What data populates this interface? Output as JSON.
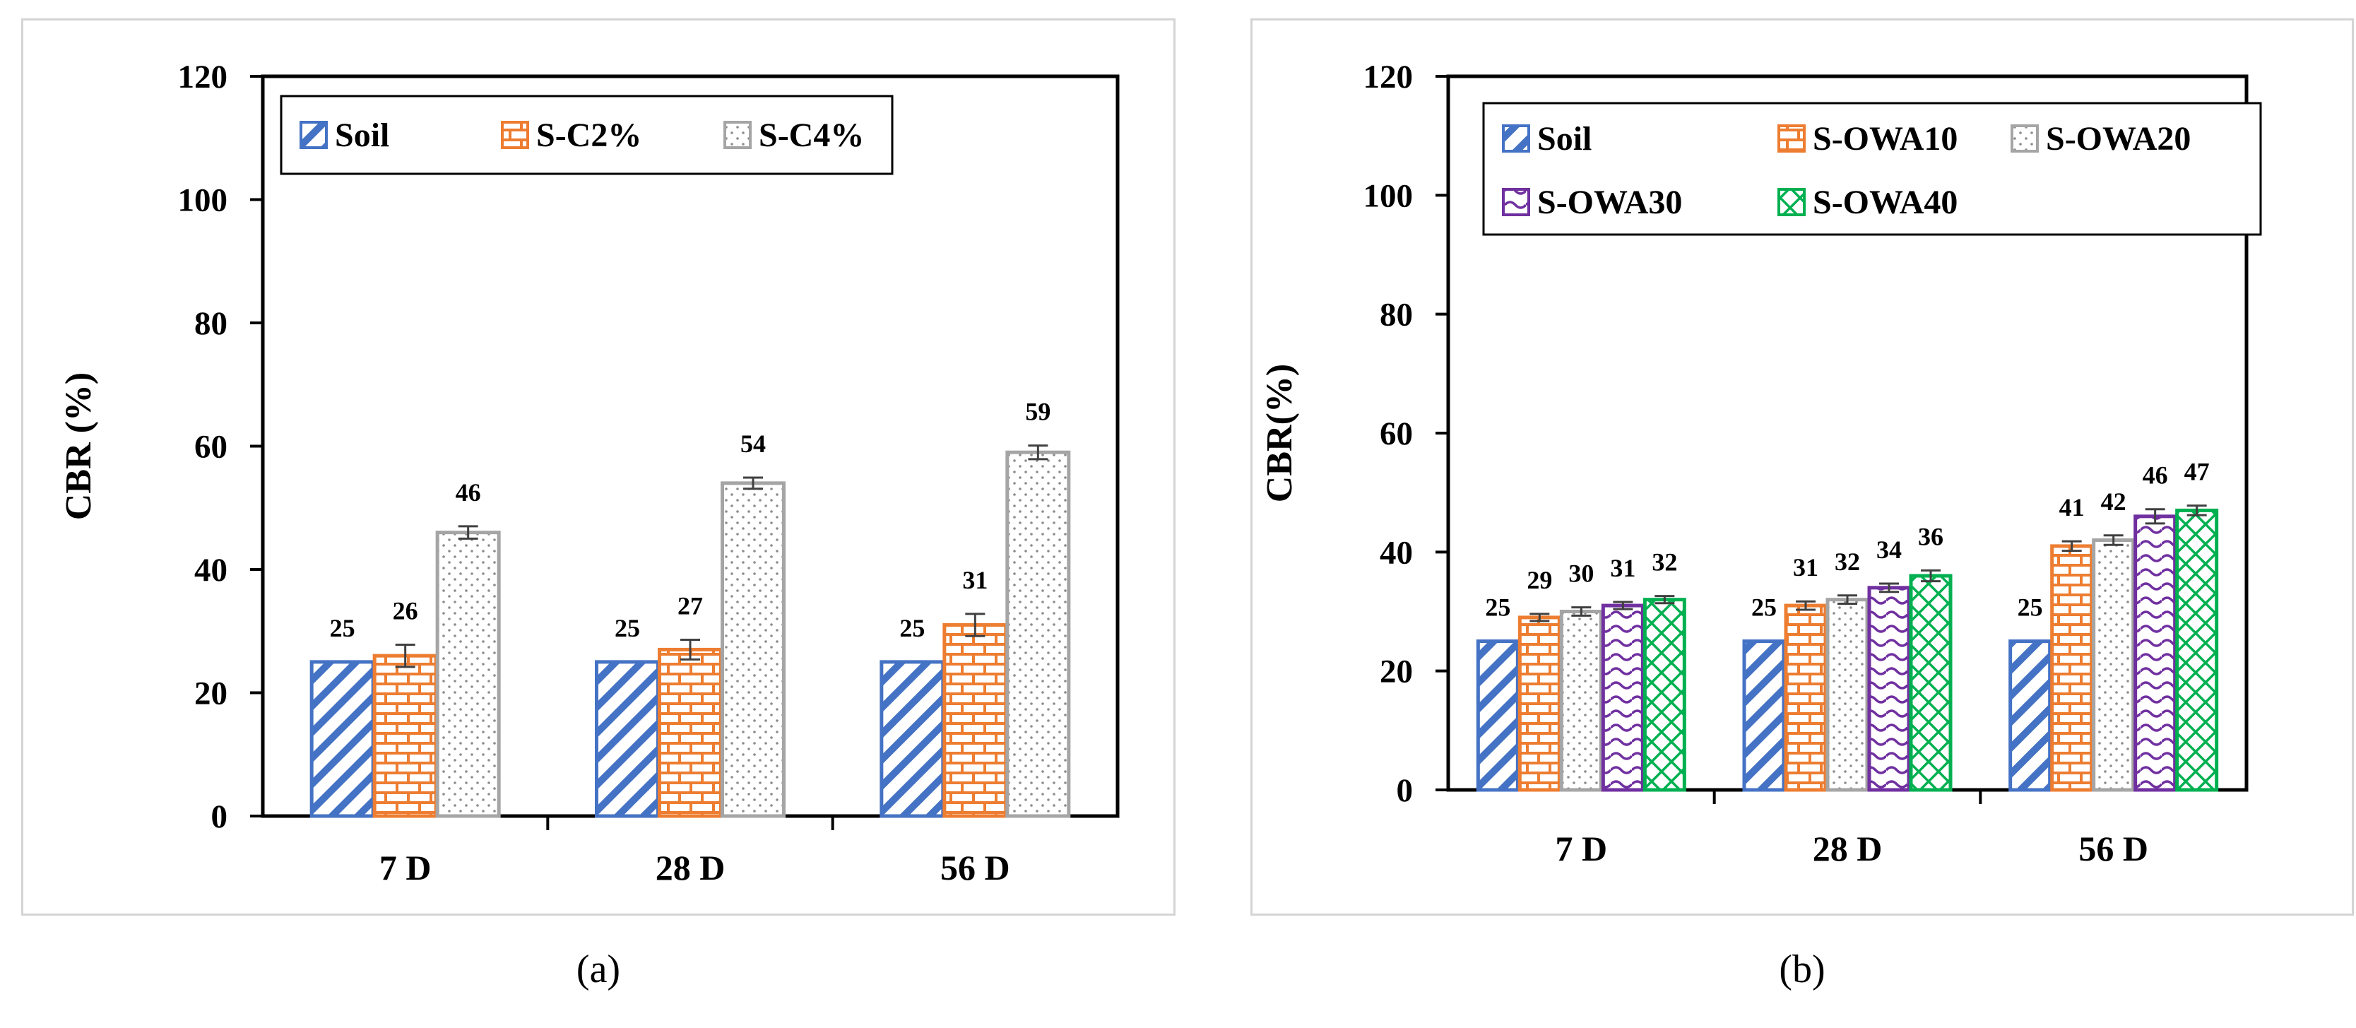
{
  "chart_data": [
    {
      "type": "bar",
      "panel": "(a)",
      "categories": [
        "7 D",
        "28 D",
        "56 D"
      ],
      "ylabel": "CBR (%)",
      "xlabel": "",
      "ylim": [
        0,
        120
      ],
      "yticks": [
        0,
        20,
        40,
        60,
        80,
        100,
        120
      ],
      "legend_position": "top-left",
      "series": [
        {
          "name": "Soil",
          "values": [
            25,
            25,
            25
          ],
          "labels": [
            "25",
            "25",
            "25"
          ],
          "errors": [
            0,
            0,
            0
          ],
          "color": "#4472c4",
          "pattern": "diagonal"
        },
        {
          "name": "S-C2%",
          "values": [
            26,
            27,
            31
          ],
          "labels": [
            "26",
            "27",
            "31"
          ],
          "errors": [
            1.8,
            1.6,
            1.8
          ],
          "color": "#ed7d31",
          "pattern": "brick"
        },
        {
          "name": "S-C4%",
          "values": [
            46,
            54,
            59
          ],
          "labels": [
            "46",
            "54",
            "59"
          ],
          "errors": [
            1.0,
            0.9,
            1.1
          ],
          "color": "#a5a5a5",
          "pattern": "dots"
        }
      ]
    },
    {
      "type": "bar",
      "panel": "(b)",
      "categories": [
        "7 D",
        "28 D",
        "56 D"
      ],
      "ylabel": "CBR(%)",
      "xlabel": "",
      "ylim": [
        0,
        120
      ],
      "yticks": [
        0,
        20,
        40,
        60,
        80,
        100,
        120
      ],
      "legend_position": "top",
      "series": [
        {
          "name": "Soil",
          "values": [
            25,
            25,
            25
          ],
          "labels": [
            "25",
            "25",
            "25"
          ],
          "errors": [
            0,
            0,
            0
          ],
          "color": "#4472c4",
          "pattern": "diagonal"
        },
        {
          "name": "S-OWA10",
          "values": [
            29,
            31,
            41
          ],
          "labels": [
            "29",
            "31",
            "41"
          ],
          "errors": [
            0.6,
            0.7,
            0.8
          ],
          "color": "#ed7d31",
          "pattern": "brick"
        },
        {
          "name": "S-OWA20",
          "values": [
            30,
            32,
            42
          ],
          "labels": [
            "30",
            "32",
            "42"
          ],
          "errors": [
            0.7,
            0.7,
            0.8
          ],
          "color": "#a5a5a5",
          "pattern": "dots"
        },
        {
          "name": "S-OWA30",
          "values": [
            31,
            34,
            46
          ],
          "labels": [
            "31",
            "34",
            "46"
          ],
          "errors": [
            0.6,
            0.7,
            1.2
          ],
          "color": "#7030a0",
          "pattern": "wave"
        },
        {
          "name": "S-OWA40",
          "values": [
            32,
            36,
            47
          ],
          "labels": [
            "32",
            "36",
            "47"
          ],
          "errors": [
            0.6,
            0.9,
            0.8
          ],
          "color": "#00b050",
          "pattern": "cross"
        }
      ]
    }
  ]
}
